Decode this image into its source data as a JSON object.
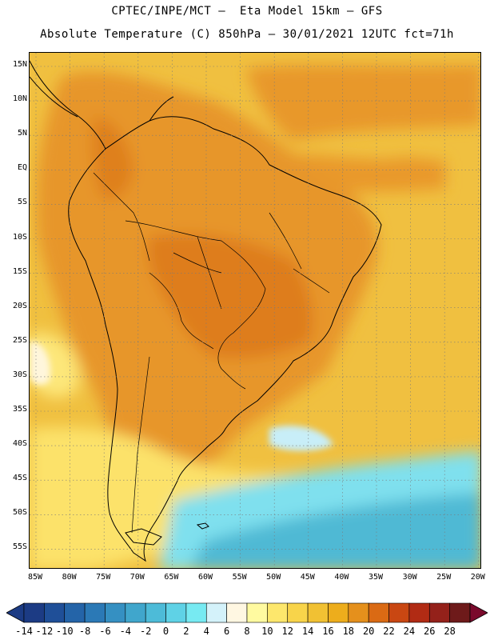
{
  "header": {
    "title_line1": "CPTEC/INPE/MCT –  Eta Model 15km – GFS",
    "title_line2": "Absolute Temperature (C) 850hPa – 30/01/2021 12UTC fct=71h"
  },
  "map": {
    "variable": "Absolute Temperature (C)",
    "level": "850hPa",
    "lat_labels": [
      "15N",
      "10N",
      "5N",
      "EQ",
      "5S",
      "10S",
      "15S",
      "20S",
      "25S",
      "30S",
      "35S",
      "40S",
      "45S",
      "50S",
      "55S"
    ],
    "lon_labels": [
      "85W",
      "80W",
      "75W",
      "70W",
      "65W",
      "60W",
      "55W",
      "50W",
      "45W",
      "40W",
      "35W",
      "30W",
      "25W",
      "20W"
    ],
    "ocean_color": "#f0c040",
    "land_color": "#eaa52a"
  },
  "colorbar": {
    "labels": [
      "-14",
      "-12",
      "-10",
      "-8",
      "-6",
      "-4",
      "-2",
      "0",
      "2",
      "4",
      "6",
      "8",
      "10",
      "12",
      "14",
      "16",
      "18",
      "20",
      "22",
      "24",
      "26",
      "28"
    ],
    "colors": [
      "#1c3b84",
      "#1f4f98",
      "#2464a8",
      "#2b79b6",
      "#3590c2",
      "#40a6cc",
      "#4dbbd8",
      "#5fd2e6",
      "#77eaf2",
      "#d4f2fa",
      "#fff7e2",
      "#fffaa0",
      "#fde76c",
      "#f8d44a",
      "#f1c133",
      "#edad1c",
      "#e5901c",
      "#da6a14",
      "#c94712",
      "#b12b14",
      "#94211a",
      "#6e1a1a"
    ],
    "low_arrow_color": "#1c3b84",
    "high_arrow_color": "#7a0a2c"
  }
}
